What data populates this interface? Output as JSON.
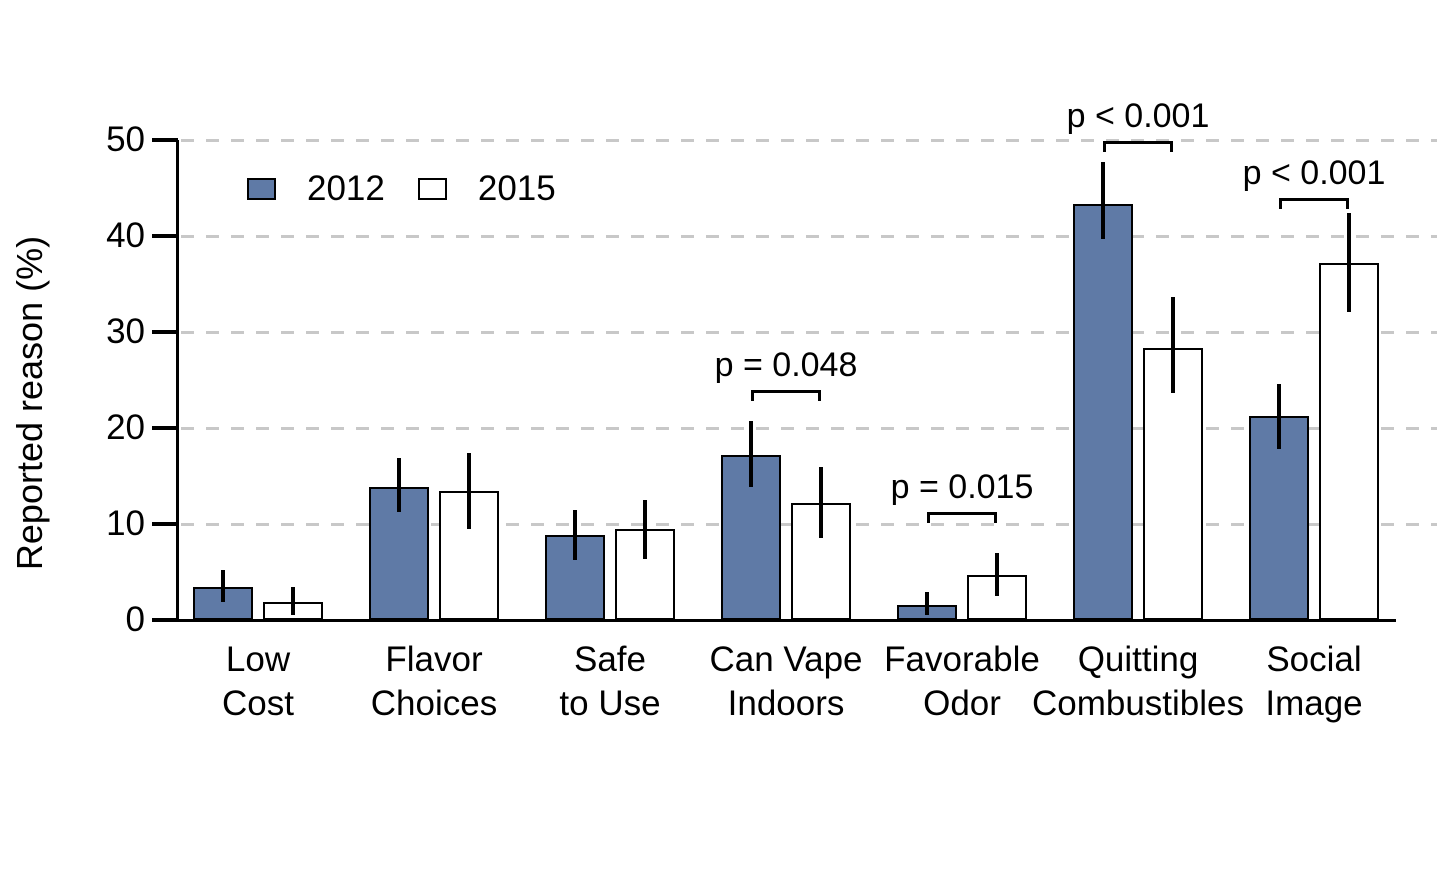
{
  "chart_data": {
    "type": "bar",
    "title": "",
    "ylabel": "Reported reason (%)",
    "xlabel": "",
    "ylim": [
      0,
      50
    ],
    "yticks": [
      0,
      10,
      20,
      30,
      40,
      50
    ],
    "grid": "horizontal-dashed",
    "legend": {
      "position": "top-left-inside",
      "items": [
        "2012",
        "2015"
      ]
    },
    "categories": [
      "Low\nCost",
      "Flavor\nChoices",
      "Safe\nto Use",
      "Can Vape\nIndoors",
      "Favorable\nOdor",
      "Quitting\nCombustibles",
      "Social\nImage"
    ],
    "series": [
      {
        "name": "2012",
        "fill": "#5f7aa6",
        "values": [
          3.4,
          13.9,
          8.9,
          17.2,
          1.6,
          43.3,
          21.2
        ],
        "err_low": [
          1.9,
          11.3,
          6.3,
          13.9,
          0.5,
          39.7,
          17.8
        ],
        "err_high": [
          5.2,
          16.9,
          11.5,
          20.7,
          2.9,
          47.7,
          24.6
        ]
      },
      {
        "name": "2015",
        "fill": "#ffffff",
        "values": [
          1.9,
          13.4,
          9.5,
          12.2,
          4.7,
          28.3,
          37.2
        ],
        "err_low": [
          0.5,
          9.5,
          6.4,
          8.5,
          2.5,
          23.6,
          32.1
        ],
        "err_high": [
          3.4,
          17.4,
          12.5,
          15.9,
          7.0,
          33.6,
          42.4
        ]
      }
    ],
    "p_annotations": [
      {
        "category_index": 3,
        "label": "p = 0.048",
        "bracket_y": 24.0
      },
      {
        "category_index": 4,
        "label": "p = 0.015",
        "bracket_y": 11.2
      },
      {
        "category_index": 5,
        "label": "p < 0.001",
        "bracket_y": 49.9
      },
      {
        "category_index": 6,
        "label": "p < 0.001",
        "bracket_y": 44.0
      }
    ],
    "colors": {
      "bar_2012": "#5f7aa6",
      "bar_2015": "#ffffff",
      "bar_border": "#000000",
      "error_bar": "#000000",
      "grid": "#c8c8c8",
      "axis": "#000000",
      "text": "#000000"
    }
  }
}
